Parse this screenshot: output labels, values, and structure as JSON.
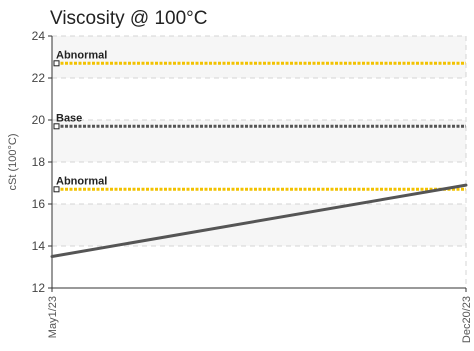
{
  "chart_data": {
    "type": "line",
    "title": "Viscosity @ 100°C",
    "ylabel": "cSt (100°C)",
    "xlabel": "",
    "ylim": [
      12,
      24
    ],
    "yticks": [
      12,
      14,
      16,
      18,
      20,
      22,
      24
    ],
    "grid": true,
    "x": [
      "May1/23",
      "Dec20/23"
    ],
    "series": [
      {
        "values": [
          13.5,
          16.9
        ],
        "color": "#555555"
      }
    ],
    "reference_lines": [
      {
        "label": "Abnormal",
        "value": 22.7,
        "color": "#f2c200"
      },
      {
        "label": "Base",
        "value": 19.7,
        "color": "#555555"
      },
      {
        "label": "Abnormal",
        "value": 16.7,
        "color": "#f2c200"
      }
    ]
  }
}
